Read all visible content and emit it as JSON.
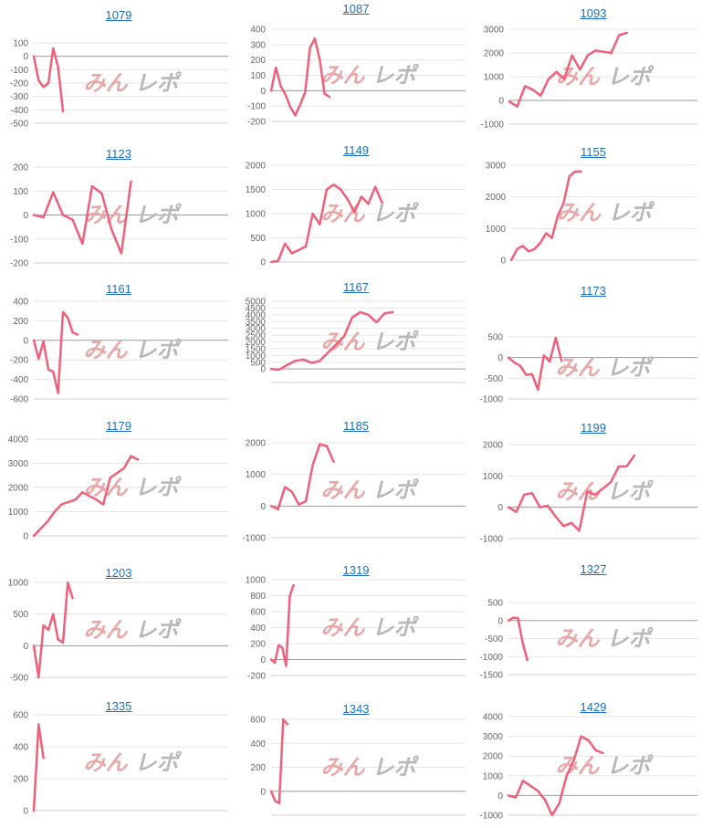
{
  "line_color": "#f0607a",
  "title_color": "#1a6fc4",
  "watermark": {
    "left": "みん",
    "right": "レポ",
    "left_color": "#e9a8a8",
    "right_color": "#b8b8b8"
  },
  "chart_data": [
    {
      "type": "line",
      "title": "1079",
      "ylim": [
        -500,
        100
      ],
      "yticks": [
        100,
        0,
        -100,
        -200,
        -300,
        -400,
        -500
      ],
      "xmax": 40,
      "values": [
        0,
        -180,
        -230,
        -200,
        60,
        -80,
        -410
      ]
    },
    {
      "type": "line",
      "title": "1087",
      "ylim": [
        -200,
        400
      ],
      "yticks": [
        400,
        300,
        200,
        100,
        0,
        -100,
        -200
      ],
      "xmax": 40,
      "values": [
        0,
        150,
        30,
        -30,
        -110,
        -160,
        -90,
        -10,
        280,
        340,
        200,
        -20,
        -40
      ]
    },
    {
      "type": "line",
      "title": "1093",
      "ylim": [
        -1000,
        3000
      ],
      "yticks": [
        3000,
        2000,
        1000,
        0,
        -1000
      ],
      "xmax": 24,
      "values": [
        -50,
        -250,
        600,
        450,
        200,
        900,
        1200,
        900,
        1900,
        1300,
        1900,
        2100,
        2050,
        2000,
        2750,
        2850
      ]
    },
    {
      "type": "line",
      "title": "1123",
      "ylim": [
        -200,
        200
      ],
      "yticks": [
        200,
        100,
        0,
        -100,
        -200
      ],
      "xmax": 20,
      "values": [
        0,
        -10,
        95,
        0,
        -20,
        -120,
        120,
        90,
        -60,
        -160,
        140
      ]
    },
    {
      "type": "line",
      "title": "1149",
      "ylim": [
        0,
        2000
      ],
      "yticks": [
        2000,
        1500,
        1000,
        500,
        0
      ],
      "xmax": 28,
      "values": [
        0,
        20,
        380,
        180,
        250,
        320,
        1000,
        780,
        1500,
        1600,
        1500,
        1300,
        1030,
        1350,
        1200,
        1550,
        1220
      ]
    },
    {
      "type": "line",
      "title": "1155",
      "ylim": [
        0,
        3000
      ],
      "yticks": [
        3000,
        2000,
        1000,
        0
      ],
      "xmax": 32,
      "values": [
        0,
        350,
        450,
        280,
        350,
        550,
        850,
        700,
        1400,
        1800,
        2650,
        2800,
        2800
      ]
    },
    {
      "type": "line",
      "title": "1161",
      "ylim": [
        -600,
        400
      ],
      "yticks": [
        400,
        200,
        0,
        -200,
        -400,
        -600
      ],
      "xmax": 40,
      "values": [
        0,
        -190,
        -10,
        -300,
        -320,
        -540,
        290,
        230,
        80,
        60
      ]
    },
    {
      "type": "line",
      "title": "1167",
      "ylim": [
        -1000,
        5000
      ],
      "yticks": [
        5000,
        4500,
        4000,
        3500,
        3000,
        2500,
        2000,
        1500,
        1000,
        500,
        0
      ],
      "xmax": 24,
      "values": [
        0,
        -50,
        300,
        600,
        700,
        450,
        600,
        1200,
        1800,
        2400,
        3800,
        4200,
        4000,
        3450,
        4100,
        4200
      ]
    },
    {
      "type": "line",
      "title": "1173",
      "ylim": [
        -1000,
        500
      ],
      "yticks": [
        500,
        0,
        -500,
        -1000
      ],
      "xmax": 32,
      "values": [
        0,
        -120,
        -200,
        -420,
        -400,
        -780,
        50,
        -100,
        480,
        -80
      ]
    },
    {
      "type": "line",
      "title": "1179",
      "ylim": [
        0,
        4000
      ],
      "yticks": [
        4000,
        3000,
        2000,
        1000,
        0
      ],
      "xmax": 28,
      "values": [
        0,
        300,
        600,
        1000,
        1300,
        1400,
        1500,
        1800,
        1650,
        1500,
        1300,
        2400,
        2600,
        2800,
        3300,
        3150
      ]
    },
    {
      "type": "line",
      "title": "1185",
      "ylim": [
        -1000,
        2000
      ],
      "yticks": [
        2000,
        1000,
        0,
        -1000
      ],
      "xmax": 28,
      "values": [
        0,
        -100,
        600,
        450,
        50,
        150,
        1300,
        1950,
        1900,
        1400
      ]
    },
    {
      "type": "line",
      "title": "1199",
      "ylim": [
        -1000,
        2000
      ],
      "yticks": [
        2000,
        1000,
        0,
        -1000
      ],
      "xmax": 24,
      "values": [
        0,
        -150,
        400,
        450,
        0,
        50,
        -300,
        -600,
        -500,
        -750,
        500,
        400,
        600,
        800,
        1300,
        1300,
        1650
      ]
    },
    {
      "type": "line",
      "title": "1203",
      "ylim": [
        -500,
        1000
      ],
      "yticks": [
        1000,
        500,
        0,
        -500
      ],
      "xmax": 40,
      "values": [
        0,
        -500,
        320,
        250,
        500,
        100,
        50,
        1000,
        750
      ]
    },
    {
      "type": "line",
      "title": "1319",
      "ylim": [
        -200,
        1000
      ],
      "yticks": [
        1000,
        800,
        600,
        400,
        200,
        0,
        -200
      ],
      "xmax": 52,
      "values": [
        0,
        -40,
        180,
        150,
        -80,
        800,
        930
      ]
    },
    {
      "type": "line",
      "title": "1327",
      "ylim": [
        -1500,
        500
      ],
      "yticks": [
        500,
        0,
        -500,
        -1000,
        -1500
      ],
      "xmax": 40,
      "values": [
        0,
        80,
        70,
        -600,
        -1100
      ]
    },
    {
      "type": "line",
      "title": "1335",
      "ylim": [
        0,
        600
      ],
      "yticks": [
        600,
        400,
        200,
        0
      ],
      "xmax": 40,
      "values": [
        0,
        540,
        330
      ]
    },
    {
      "type": "line",
      "title": "1343",
      "ylim": [
        -200,
        600
      ],
      "yticks": [
        600,
        400,
        200,
        0
      ],
      "xmax": 48,
      "values": [
        0,
        -80,
        -100,
        600,
        560
      ]
    },
    {
      "type": "line",
      "title": "1429",
      "ylim": [
        -1000,
        4000
      ],
      "yticks": [
        4000,
        3000,
        2000,
        1000,
        0,
        -1000
      ],
      "xmax": 26,
      "values": [
        0,
        -100,
        750,
        500,
        250,
        -200,
        -1000,
        -400,
        1000,
        1800,
        3000,
        2800,
        2300,
        2150
      ]
    }
  ]
}
